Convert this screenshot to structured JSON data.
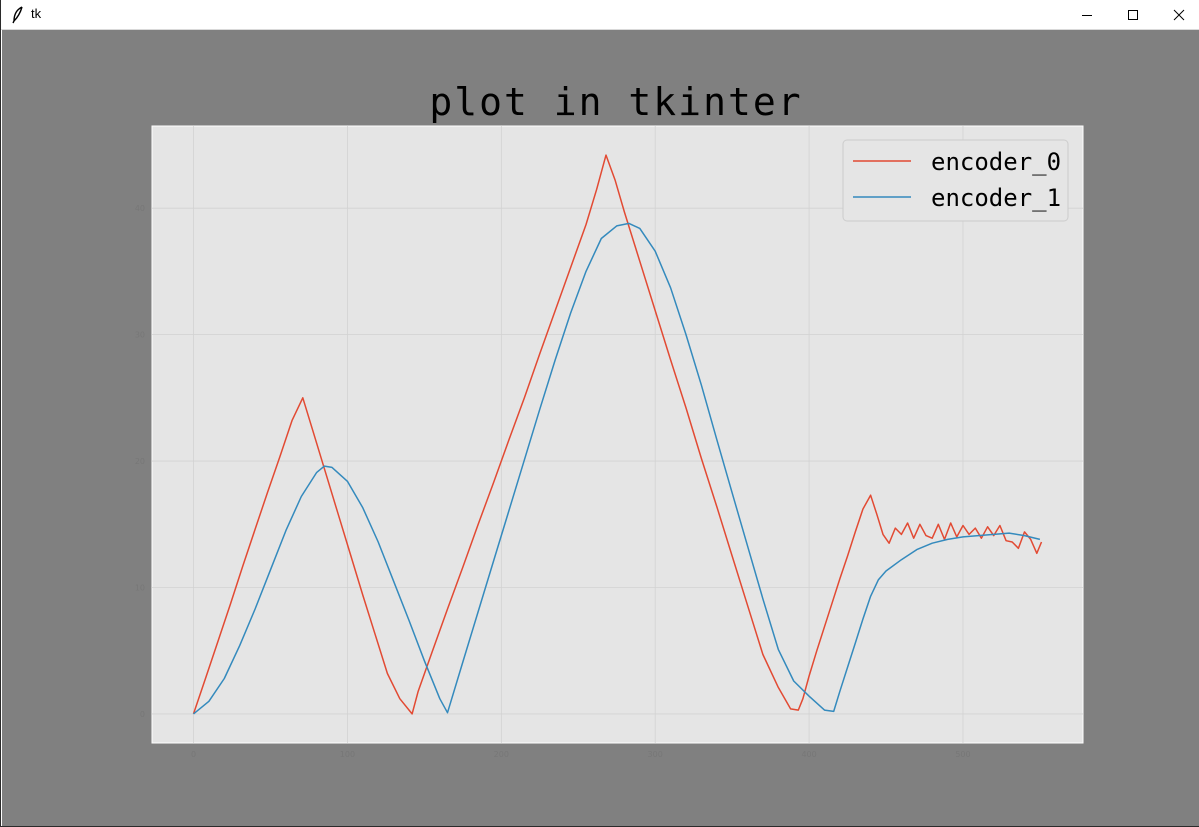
{
  "window": {
    "title": "tk",
    "controls": [
      "minimize",
      "maximize",
      "close"
    ],
    "icons": {
      "app": "feather-icon",
      "minimize": "minimize-icon",
      "maximize": "maximize-icon",
      "close": "close-icon"
    }
  },
  "colors": {
    "canvas_bg": "#808080",
    "plot_bg": "#e5e5e5",
    "grid": "#d2d2d2",
    "encoder_0": "#e24a33",
    "encoder_1": "#348abd"
  },
  "chart_data": {
    "type": "line",
    "title": "plot in tkinter",
    "xlabel": "",
    "ylabel": "",
    "xlim": [
      -27,
      578
    ],
    "ylim": [
      -2.3,
      46.5
    ],
    "xticks": [
      0,
      100,
      200,
      300,
      400,
      500
    ],
    "yticks": [
      0,
      10,
      20,
      30,
      40
    ],
    "grid": true,
    "legend_position": "top-right",
    "series": [
      {
        "name": "encoder_0",
        "color": "#e24a33",
        "x": [
          0,
          8,
          16,
          24,
          32,
          40,
          48,
          56,
          64,
          71,
          78,
          86,
          94,
          102,
          110,
          118,
          126,
          134,
          142,
          146,
          155,
          165,
          175,
          185,
          195,
          205,
          215,
          225,
          235,
          245,
          255,
          262,
          268,
          274,
          280,
          290,
          300,
          310,
          320,
          330,
          340,
          350,
          360,
          370,
          380,
          388,
          393,
          396,
          400,
          405,
          410,
          415,
          420,
          425,
          430,
          435,
          440,
          444,
          448,
          452,
          456,
          460,
          464,
          468,
          472,
          476,
          480,
          484,
          488,
          492,
          496,
          500,
          504,
          508,
          512,
          516,
          520,
          524,
          528,
          532,
          536,
          540,
          544,
          548,
          551
        ],
        "y": [
          0,
          2.9,
          5.8,
          8.7,
          11.7,
          14.6,
          17.5,
          20.3,
          23.2,
          25.0,
          22.2,
          19.0,
          15.8,
          12.6,
          9.4,
          6.3,
          3.2,
          1.2,
          0,
          1.8,
          4.9,
          8.3,
          11.6,
          15.0,
          18.3,
          21.7,
          25.0,
          28.5,
          31.9,
          35.3,
          38.7,
          41.5,
          44.2,
          42.2,
          39.7,
          35.8,
          31.9,
          28.0,
          24.2,
          20.2,
          16.4,
          12.5,
          8.6,
          4.7,
          2.1,
          0.4,
          0.3,
          1.2,
          3.0,
          5.0,
          6.9,
          8.8,
          10.7,
          12.5,
          14.4,
          16.2,
          17.3,
          15.8,
          14.2,
          13.5,
          14.7,
          14.2,
          15.1,
          13.9,
          15.0,
          14.1,
          13.9,
          15.0,
          13.8,
          15.1,
          14.0,
          14.9,
          14.2,
          14.7,
          13.9,
          14.8,
          14.1,
          14.9,
          13.7,
          13.6,
          13.1,
          14.4,
          13.8,
          12.7,
          13.6
        ]
      },
      {
        "name": "encoder_1",
        "color": "#348abd",
        "x": [
          0,
          10,
          20,
          30,
          40,
          50,
          60,
          70,
          80,
          85,
          90,
          100,
          110,
          120,
          130,
          140,
          150,
          160,
          165,
          175,
          185,
          195,
          205,
          215,
          225,
          235,
          245,
          255,
          265,
          275,
          283,
          290,
          300,
          310,
          320,
          330,
          340,
          350,
          360,
          370,
          380,
          390,
          400,
          410,
          416,
          420,
          425,
          430,
          435,
          440,
          445,
          450,
          460,
          470,
          480,
          490,
          500,
          510,
          520,
          530,
          540,
          550
        ],
        "y": [
          0,
          1.0,
          2.8,
          5.4,
          8.3,
          11.4,
          14.5,
          17.2,
          19.1,
          19.6,
          19.5,
          18.4,
          16.3,
          13.6,
          10.5,
          7.4,
          4.2,
          1.2,
          0.1,
          4.1,
          8.1,
          12.1,
          16.1,
          20.1,
          24.1,
          28.0,
          31.7,
          35.0,
          37.6,
          38.6,
          38.8,
          38.4,
          36.6,
          33.7,
          30.0,
          26.0,
          21.7,
          17.5,
          13.3,
          9.1,
          5.1,
          2.6,
          1.4,
          0.3,
          0.2,
          1.8,
          3.7,
          5.6,
          7.5,
          9.3,
          10.6,
          11.3,
          12.2,
          13.0,
          13.5,
          13.8,
          14.0,
          14.1,
          14.2,
          14.3,
          14.1,
          13.8
        ]
      }
    ]
  }
}
